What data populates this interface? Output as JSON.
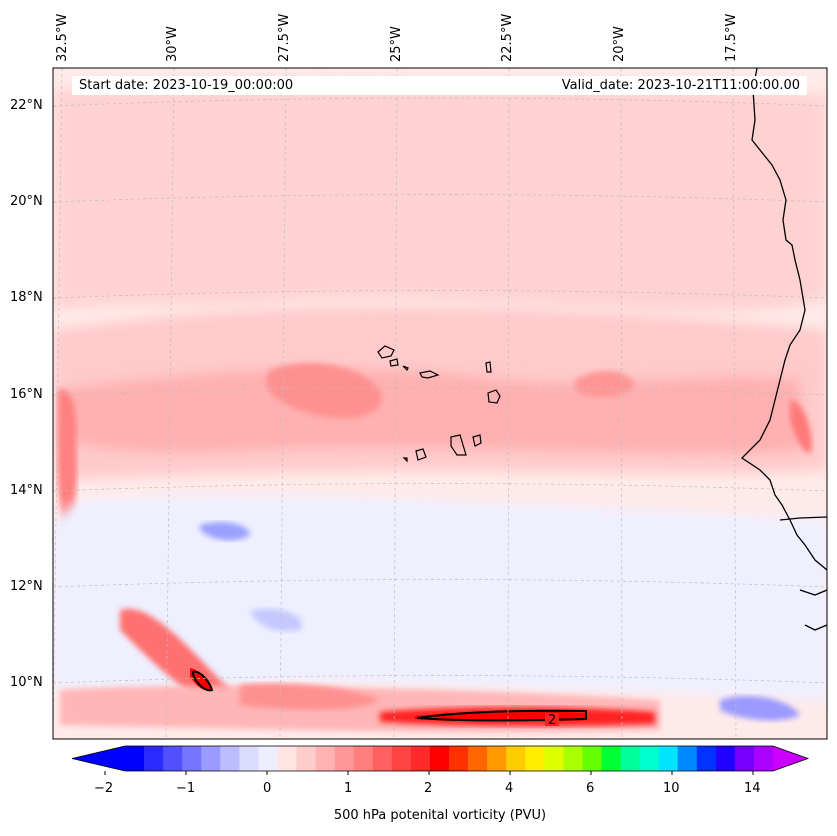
{
  "map": {
    "start_label": "Start date: 2023-10-19_00:00:00",
    "valid_label": "Valid_date: 2023-10-21T11:00:00.00",
    "lon_labels": [
      "32.5°W",
      "30°W",
      "27.5°W",
      "25°W",
      "22.5°W",
      "20°W",
      "17.5°W"
    ],
    "lat_labels": [
      "22°N",
      "20°N",
      "18°N",
      "16°N",
      "14°N",
      "12°N",
      "10°N"
    ],
    "contour_label": "2"
  },
  "colorbar": {
    "title": "500 hPa potenital vorticity (PVU)",
    "tick_labels": [
      "−2",
      "−1",
      "0",
      "1",
      "2",
      "4",
      "6",
      "10",
      "14"
    ],
    "colors": [
      "#0000ff",
      "#2b2bff",
      "#5050ff",
      "#7575ff",
      "#9a9aff",
      "#bcbcff",
      "#dcdcff",
      "#eeeeff",
      "#ffe4e4",
      "#ffcccc",
      "#ffb3b3",
      "#ff9999",
      "#ff7f7f",
      "#ff6060",
      "#ff4444",
      "#ff2a2a",
      "#ff0000",
      "#ff3300",
      "#ff6600",
      "#ff9900",
      "#ffcc00",
      "#ffee00",
      "#ddff00",
      "#aaff00",
      "#66ff00",
      "#00ff33",
      "#00ff99",
      "#00ffcc",
      "#00e5ff",
      "#0088ff",
      "#0033ff",
      "#2200ff",
      "#7700ff",
      "#aa00ff"
    ],
    "under_color": "#0000ff",
    "over_color": "#cc00ff"
  }
}
